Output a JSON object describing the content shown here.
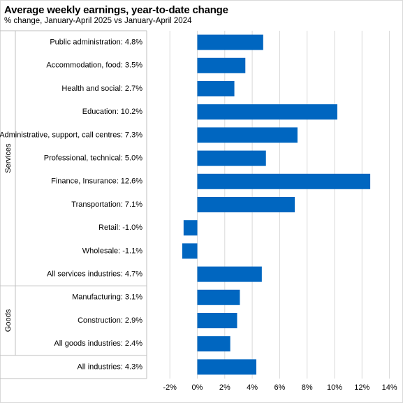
{
  "chart_data": {
    "type": "bar",
    "orientation": "horizontal",
    "title": "Average weekly earnings, year-to-date change",
    "subtitle": "% change, January-April 2025 vs January-April 2024",
    "xlim": [
      -2,
      14
    ],
    "xticks": [
      -2,
      0,
      2,
      4,
      6,
      8,
      10,
      12,
      14
    ],
    "tick_suffix": "%",
    "grid": "vertical",
    "bar_color": "#0066c0",
    "categories": [
      "Public administration: 4.8%",
      "Accommodation, food: 3.5%",
      "Health and social: 2.7%",
      "Education: 10.2%",
      "Administrative, support, call centres: 7.3%",
      "Professional, technical: 5.0%",
      "Finance, Insurance: 12.6%",
      "Transportation: 7.1%",
      "Retail: -1.0%",
      "Wholesale: -1.1%",
      "All services industries: 4.7%",
      "Manufacturing: 3.1%",
      "Construction: 2.9%",
      "All goods industries: 2.4%",
      "All industries: 4.3%"
    ],
    "values": [
      4.8,
      3.5,
      2.7,
      10.2,
      7.3,
      5.0,
      12.6,
      7.1,
      -1.0,
      -1.1,
      4.7,
      3.1,
      2.9,
      2.4,
      4.3
    ],
    "groups": [
      {
        "name": "Services",
        "count": 11
      },
      {
        "name": "Goods",
        "count": 3
      },
      {
        "name": "",
        "count": 1
      }
    ]
  }
}
